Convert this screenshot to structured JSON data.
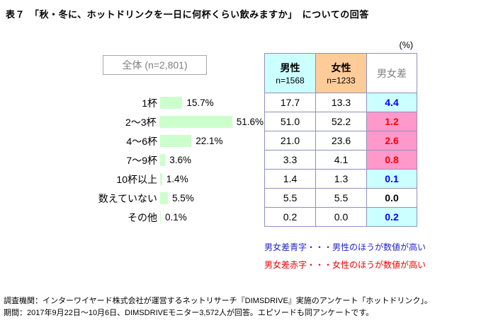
{
  "title": "表７　「秋・冬に、ホットドリンクを一日に何杯くらい飲みますか」　についての回答",
  "total_label": "全体 (n=2,801)",
  "percent_label": "(%)",
  "chart_data": {
    "type": "bar",
    "title": "秋・冬に、ホットドリンクを一日に何杯くらい飲みますか",
    "unit": "%",
    "categories": [
      "1杯",
      "2〜3杯",
      "4〜6杯",
      "7〜9杯",
      "10杯以上",
      "数えていない",
      "その他"
    ],
    "values": [
      15.7,
      51.6,
      22.1,
      3.6,
      1.4,
      5.5,
      0.1
    ],
    "value_labels": [
      "15.7%",
      "51.6%",
      "22.1%",
      "3.6%",
      "1.4%",
      "5.5%",
      "0.1%"
    ],
    "series": [
      {
        "name": "全体 (n=2,801)",
        "values": [
          15.7,
          51.6,
          22.1,
          3.6,
          1.4,
          5.5,
          0.1
        ]
      },
      {
        "name": "男性 n=1568",
        "values": [
          17.7,
          51.0,
          21.0,
          3.3,
          1.4,
          5.5,
          0.2
        ]
      },
      {
        "name": "女性 n=1233",
        "values": [
          13.3,
          52.2,
          23.6,
          4.1,
          1.3,
          5.5,
          0.0
        ]
      },
      {
        "name": "男女差",
        "values": [
          4.4,
          1.2,
          2.6,
          0.8,
          0.1,
          0.0,
          0.2
        ]
      }
    ],
    "bar_color": "#ccffcc",
    "legend_position": "none",
    "grid": false
  },
  "table": {
    "header": {
      "male": {
        "label": "男性",
        "sub": "n=1568"
      },
      "female": {
        "label": "女性",
        "sub": "n=1233"
      },
      "diff": {
        "label": "男女差"
      }
    },
    "rows": [
      {
        "category": "1杯",
        "male": "17.7",
        "female": "13.3",
        "diff": "4.4",
        "diff_type": "male_higher"
      },
      {
        "category": "2〜3杯",
        "male": "51.0",
        "female": "52.2",
        "diff": "1.2",
        "diff_type": "female_higher"
      },
      {
        "category": "4〜6杯",
        "male": "21.0",
        "female": "23.6",
        "diff": "2.6",
        "diff_type": "female_higher"
      },
      {
        "category": "7〜9杯",
        "male": "3.3",
        "female": "4.1",
        "diff": "0.8",
        "diff_type": "female_higher"
      },
      {
        "category": "10杯以上",
        "male": "1.4",
        "female": "1.3",
        "diff": "0.1",
        "diff_type": "male_higher"
      },
      {
        "category": "数えていない",
        "male": "5.5",
        "female": "5.5",
        "diff": "0.0",
        "diff_type": "equal"
      },
      {
        "category": "その他",
        "male": "0.2",
        "female": "0.0",
        "diff": "0.2",
        "diff_type": "male_higher"
      }
    ]
  },
  "legend": {
    "blue_note": "男女差青字・・・男性のほうが数値が高い",
    "red_note": "男女差赤字・・・女性のほうが数値が高い"
  },
  "colors": {
    "bar": "#ccffcc",
    "male_header_bg": "#ccffff",
    "female_header_bg": "#ffcc99",
    "diff_blue_bg": "#ccffff",
    "diff_pink_bg": "#ff99cc",
    "blue_text": "#0000ff",
    "red_text": "#ff0000"
  },
  "footer": {
    "line1": "調査機関：インターワイヤード株式会社が運営するネットリサーチ『DIMSDRIVE』実施のアンケート「ホットドリンク」。",
    "line2": "期間：2017年9月22日〜10月6日、DIMSDRIVEモニター3,572人が回答。エピソードも同アンケートです。"
  }
}
